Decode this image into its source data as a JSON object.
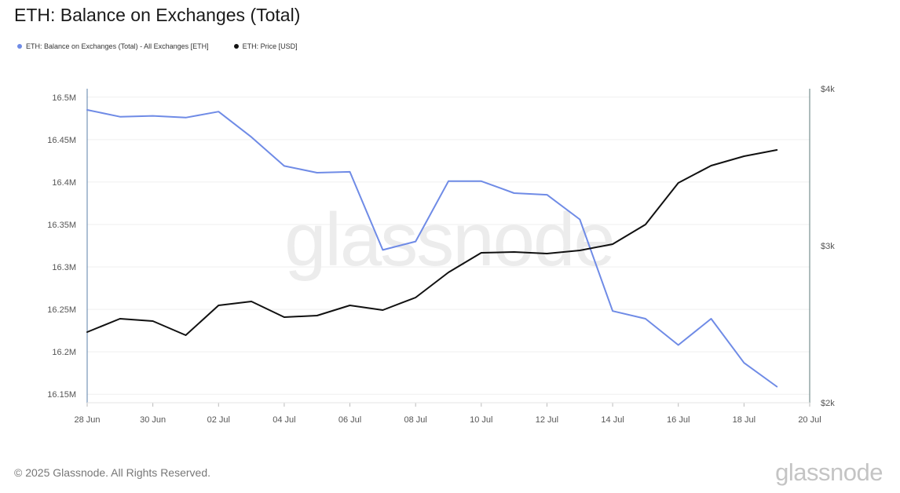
{
  "chart_data": {
    "type": "line",
    "title": "ETH: Balance on Exchanges (Total)",
    "watermark": "glassnode",
    "x_ticks": [
      "28 Jun",
      "30 Jun",
      "02 Jul",
      "04 Jul",
      "06 Jul",
      "08 Jul",
      "10 Jul",
      "12 Jul",
      "14 Jul",
      "16 Jul",
      "18 Jul",
      "20 Jul"
    ],
    "x": [
      "2025-06-28",
      "2025-06-29",
      "2025-06-30",
      "2025-07-01",
      "2025-07-02",
      "2025-07-03",
      "2025-07-04",
      "2025-07-05",
      "2025-07-06",
      "2025-07-07",
      "2025-07-08",
      "2025-07-09",
      "2025-07-10",
      "2025-07-11",
      "2025-07-12",
      "2025-07-13",
      "2025-07-14",
      "2025-07-15",
      "2025-07-16",
      "2025-07-17",
      "2025-07-18",
      "2025-07-19"
    ],
    "xlim": [
      "2025-06-28",
      "2025-07-20"
    ],
    "left_axis": {
      "ylim": [
        16.14,
        16.51
      ],
      "ticks": [
        16.15,
        16.2,
        16.25,
        16.3,
        16.35,
        16.4,
        16.45,
        16.5
      ],
      "tick_labels": [
        "16.15M",
        "16.2M",
        "16.25M",
        "16.3M",
        "16.35M",
        "16.4M",
        "16.45M",
        "16.5M"
      ]
    },
    "right_axis": {
      "ylim": [
        2000,
        4000
      ],
      "ticks": [
        2000,
        3000,
        4000
      ],
      "tick_labels": [
        "$2k",
        "$3k",
        "$4k"
      ]
    },
    "series": [
      {
        "name": "ETH: Balance on Exchanges (Total) - All Exchanges [ETH]",
        "axis": "left",
        "unit": "M ETH",
        "color": "#6f8be6",
        "values": [
          16.485,
          16.477,
          16.478,
          16.476,
          16.483,
          16.453,
          16.419,
          16.411,
          16.412,
          16.32,
          16.33,
          16.401,
          16.401,
          16.387,
          16.385,
          16.356,
          16.248,
          16.239,
          16.208,
          16.239,
          16.187,
          16.159
        ]
      },
      {
        "name": "ETH: Price [USD]",
        "axis": "right",
        "unit": "USD",
        "color": "#111111",
        "values": [
          2450,
          2535,
          2520,
          2430,
          2620,
          2645,
          2545,
          2555,
          2620,
          2590,
          2670,
          2830,
          2955,
          2960,
          2950,
          2970,
          3010,
          3135,
          3400,
          3510,
          3570,
          3610
        ]
      }
    ],
    "grid": true,
    "legend_position": "top-left"
  },
  "footer": {
    "copyright": "© 2025 Glassnode. All Rights Reserved.",
    "logo": "glassnode"
  }
}
